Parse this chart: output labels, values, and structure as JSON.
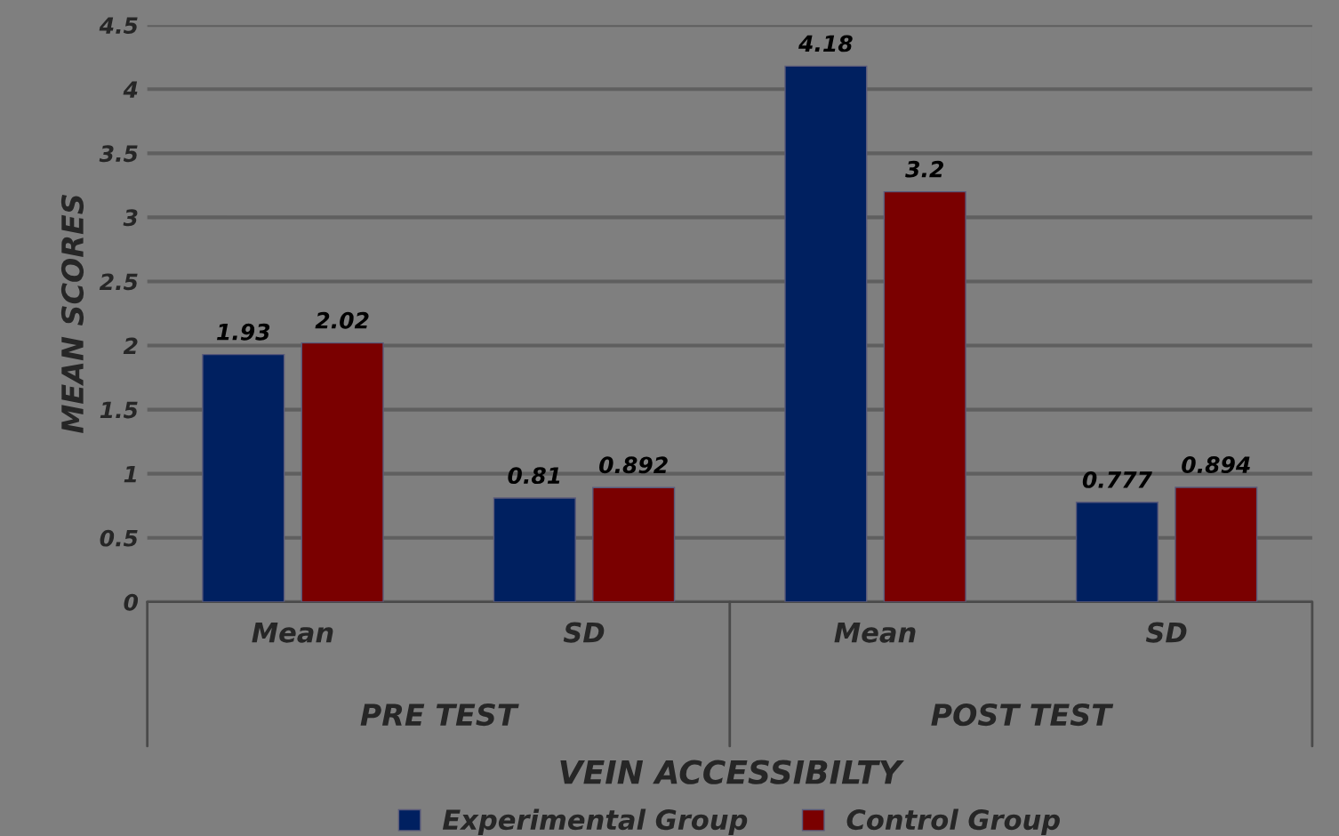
{
  "chart_data": {
    "type": "bar",
    "xlabel": "VEIN ACCESSIBILTY",
    "ylabel": "MEAN SCORES",
    "categories": [
      "Mean",
      "SD",
      "Mean",
      "SD"
    ],
    "series": [
      {
        "name": "Experimental Group",
        "color": "#002060",
        "values": [
          1.93,
          0.81,
          4.18,
          0.777
        ]
      },
      {
        "name": "Control Group",
        "color": "#7a0000",
        "values": [
          2.02,
          0.892,
          3.2,
          0.894
        ]
      }
    ],
    "annotations": [
      "PRE TEST",
      "POST TEST"
    ],
    "ylim": [
      0,
      4.5
    ],
    "yticks": [
      0,
      0.5,
      1,
      1.5,
      2,
      2.5,
      3,
      3.5,
      4,
      4.5
    ],
    "grid": "y",
    "data_labels": true,
    "legend": "bottom"
  }
}
